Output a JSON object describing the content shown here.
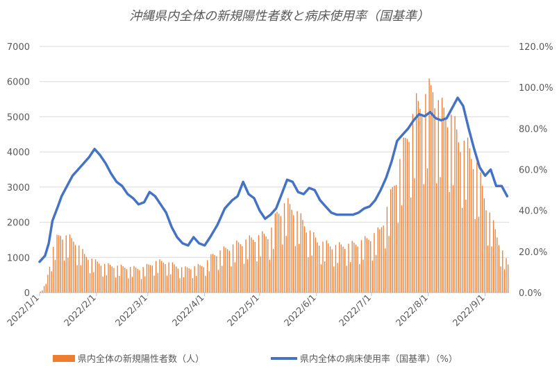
{
  "chart_data": {
    "type": "bar+line",
    "title": "沖縄県内全体の新規陽性者数と病床使用率（国基準）",
    "x_tick_labels": [
      "2022/1/1",
      "2022/2/1",
      "2022/3/1",
      "2022/4/1",
      "2022/5/1",
      "2022/6/1",
      "2022/7/1",
      "2022/8/1",
      "2022/9/1"
    ],
    "y_left": {
      "ticks": [
        "0",
        "1000",
        "2000",
        "3000",
        "4000",
        "5000",
        "6000",
        "7000"
      ],
      "lim": [
        0,
        7000
      ]
    },
    "y_right": {
      "ticks": [
        "0.0%",
        "20.0%",
        "40.0%",
        "60.0%",
        "80.0%",
        "100.0%",
        "120.0%"
      ],
      "lim": [
        0,
        120
      ]
    },
    "grid": true,
    "legend_position": "bottom",
    "series": [
      {
        "name": "県内全体の新規陽性者数（人）",
        "kind": "bar",
        "axis": "left",
        "color": "#ED7D31",
        "anchors": [
          [
            "2022-01-01",
            30
          ],
          [
            "2022-01-04",
            250
          ],
          [
            "2022-01-07",
            1100
          ],
          [
            "2022-01-09",
            1500
          ],
          [
            "2022-01-12",
            1700
          ],
          [
            "2022-01-16",
            1600
          ],
          [
            "2022-01-20",
            1500
          ],
          [
            "2022-01-25",
            1100
          ],
          [
            "2022-01-31",
            900
          ],
          [
            "2022-02-06",
            800
          ],
          [
            "2022-02-15",
            750
          ],
          [
            "2022-02-25",
            700
          ],
          [
            "2022-03-05",
            900
          ],
          [
            "2022-03-10",
            900
          ],
          [
            "2022-03-20",
            700
          ],
          [
            "2022-03-31",
            800
          ],
          [
            "2022-04-05",
            1100
          ],
          [
            "2022-04-15",
            1350
          ],
          [
            "2022-04-25",
            1550
          ],
          [
            "2022-05-01",
            1650
          ],
          [
            "2022-05-06",
            1700
          ],
          [
            "2022-05-10",
            2300
          ],
          [
            "2022-05-15",
            2600
          ],
          [
            "2022-05-20",
            2400
          ],
          [
            "2022-05-26",
            1900
          ],
          [
            "2022-06-01",
            1500
          ],
          [
            "2022-06-10",
            1350
          ],
          [
            "2022-06-20",
            1400
          ],
          [
            "2022-06-28",
            1550
          ],
          [
            "2022-07-05",
            1800
          ],
          [
            "2022-07-10",
            2600
          ],
          [
            "2022-07-15",
            3600
          ],
          [
            "2022-07-20",
            4600
          ],
          [
            "2022-07-25",
            5400
          ],
          [
            "2022-07-31",
            5700
          ],
          [
            "2022-08-03",
            6000
          ],
          [
            "2022-08-07",
            5300
          ],
          [
            "2022-08-12",
            5200
          ],
          [
            "2022-08-17",
            4500
          ],
          [
            "2022-08-22",
            4200
          ],
          [
            "2022-08-27",
            3700
          ],
          [
            "2022-09-01",
            2600
          ],
          [
            "2022-09-06",
            1800
          ],
          [
            "2022-09-10",
            1200
          ],
          [
            "2022-09-13",
            800
          ]
        ]
      },
      {
        "name": "県内全体の病床使用率（国基準）（%）",
        "kind": "line",
        "axis": "right",
        "color": "#4472C4",
        "values": [
          [
            "2022-01-01",
            15
          ],
          [
            "2022-01-04",
            18
          ],
          [
            "2022-01-06",
            24
          ],
          [
            "2022-01-08",
            35
          ],
          [
            "2022-01-11",
            42
          ],
          [
            "2022-01-13",
            47
          ],
          [
            "2022-01-16",
            52
          ],
          [
            "2022-01-19",
            57
          ],
          [
            "2022-01-22",
            60
          ],
          [
            "2022-01-25",
            63
          ],
          [
            "2022-01-28",
            66
          ],
          [
            "2022-01-31",
            70
          ],
          [
            "2022-02-03",
            67
          ],
          [
            "2022-02-06",
            63
          ],
          [
            "2022-02-09",
            58
          ],
          [
            "2022-02-12",
            54
          ],
          [
            "2022-02-15",
            52
          ],
          [
            "2022-02-18",
            48
          ],
          [
            "2022-02-21",
            46
          ],
          [
            "2022-02-24",
            43
          ],
          [
            "2022-02-27",
            44
          ],
          [
            "2022-03-02",
            49
          ],
          [
            "2022-03-05",
            47
          ],
          [
            "2022-03-08",
            43
          ],
          [
            "2022-03-11",
            39
          ],
          [
            "2022-03-14",
            32
          ],
          [
            "2022-03-17",
            27
          ],
          [
            "2022-03-20",
            24
          ],
          [
            "2022-03-23",
            23
          ],
          [
            "2022-03-26",
            27
          ],
          [
            "2022-03-29",
            24
          ],
          [
            "2022-04-01",
            23
          ],
          [
            "2022-04-04",
            27
          ],
          [
            "2022-04-08",
            33
          ],
          [
            "2022-04-12",
            41
          ],
          [
            "2022-04-16",
            45
          ],
          [
            "2022-04-19",
            47
          ],
          [
            "2022-04-22",
            54
          ],
          [
            "2022-04-25",
            48
          ],
          [
            "2022-04-28",
            46
          ],
          [
            "2022-05-01",
            40
          ],
          [
            "2022-05-04",
            36
          ],
          [
            "2022-05-07",
            38
          ],
          [
            "2022-05-10",
            41
          ],
          [
            "2022-05-13",
            48
          ],
          [
            "2022-05-16",
            55
          ],
          [
            "2022-05-19",
            54
          ],
          [
            "2022-05-22",
            49
          ],
          [
            "2022-05-25",
            48
          ],
          [
            "2022-05-28",
            51
          ],
          [
            "2022-05-31",
            50
          ],
          [
            "2022-06-03",
            45
          ],
          [
            "2022-06-06",
            42
          ],
          [
            "2022-06-09",
            39
          ],
          [
            "2022-06-12",
            38
          ],
          [
            "2022-06-15",
            38
          ],
          [
            "2022-06-18",
            38
          ],
          [
            "2022-06-21",
            38
          ],
          [
            "2022-06-24",
            39
          ],
          [
            "2022-06-27",
            41
          ],
          [
            "2022-06-30",
            42
          ],
          [
            "2022-07-03",
            45
          ],
          [
            "2022-07-06",
            50
          ],
          [
            "2022-07-09",
            56
          ],
          [
            "2022-07-12",
            64
          ],
          [
            "2022-07-15",
            74
          ],
          [
            "2022-07-18",
            77
          ],
          [
            "2022-07-21",
            80
          ],
          [
            "2022-07-24",
            84
          ],
          [
            "2022-07-27",
            87
          ],
          [
            "2022-07-30",
            86
          ],
          [
            "2022-08-02",
            88
          ],
          [
            "2022-08-05",
            85
          ],
          [
            "2022-08-08",
            84
          ],
          [
            "2022-08-11",
            85
          ],
          [
            "2022-08-14",
            90
          ],
          [
            "2022-08-17",
            95
          ],
          [
            "2022-08-20",
            91
          ],
          [
            "2022-08-23",
            80
          ],
          [
            "2022-08-26",
            70
          ],
          [
            "2022-08-29",
            61
          ],
          [
            "2022-09-01",
            57
          ],
          [
            "2022-09-04",
            60
          ],
          [
            "2022-09-07",
            52
          ],
          [
            "2022-09-10",
            52
          ],
          [
            "2022-09-13",
            47
          ]
        ]
      }
    ]
  }
}
